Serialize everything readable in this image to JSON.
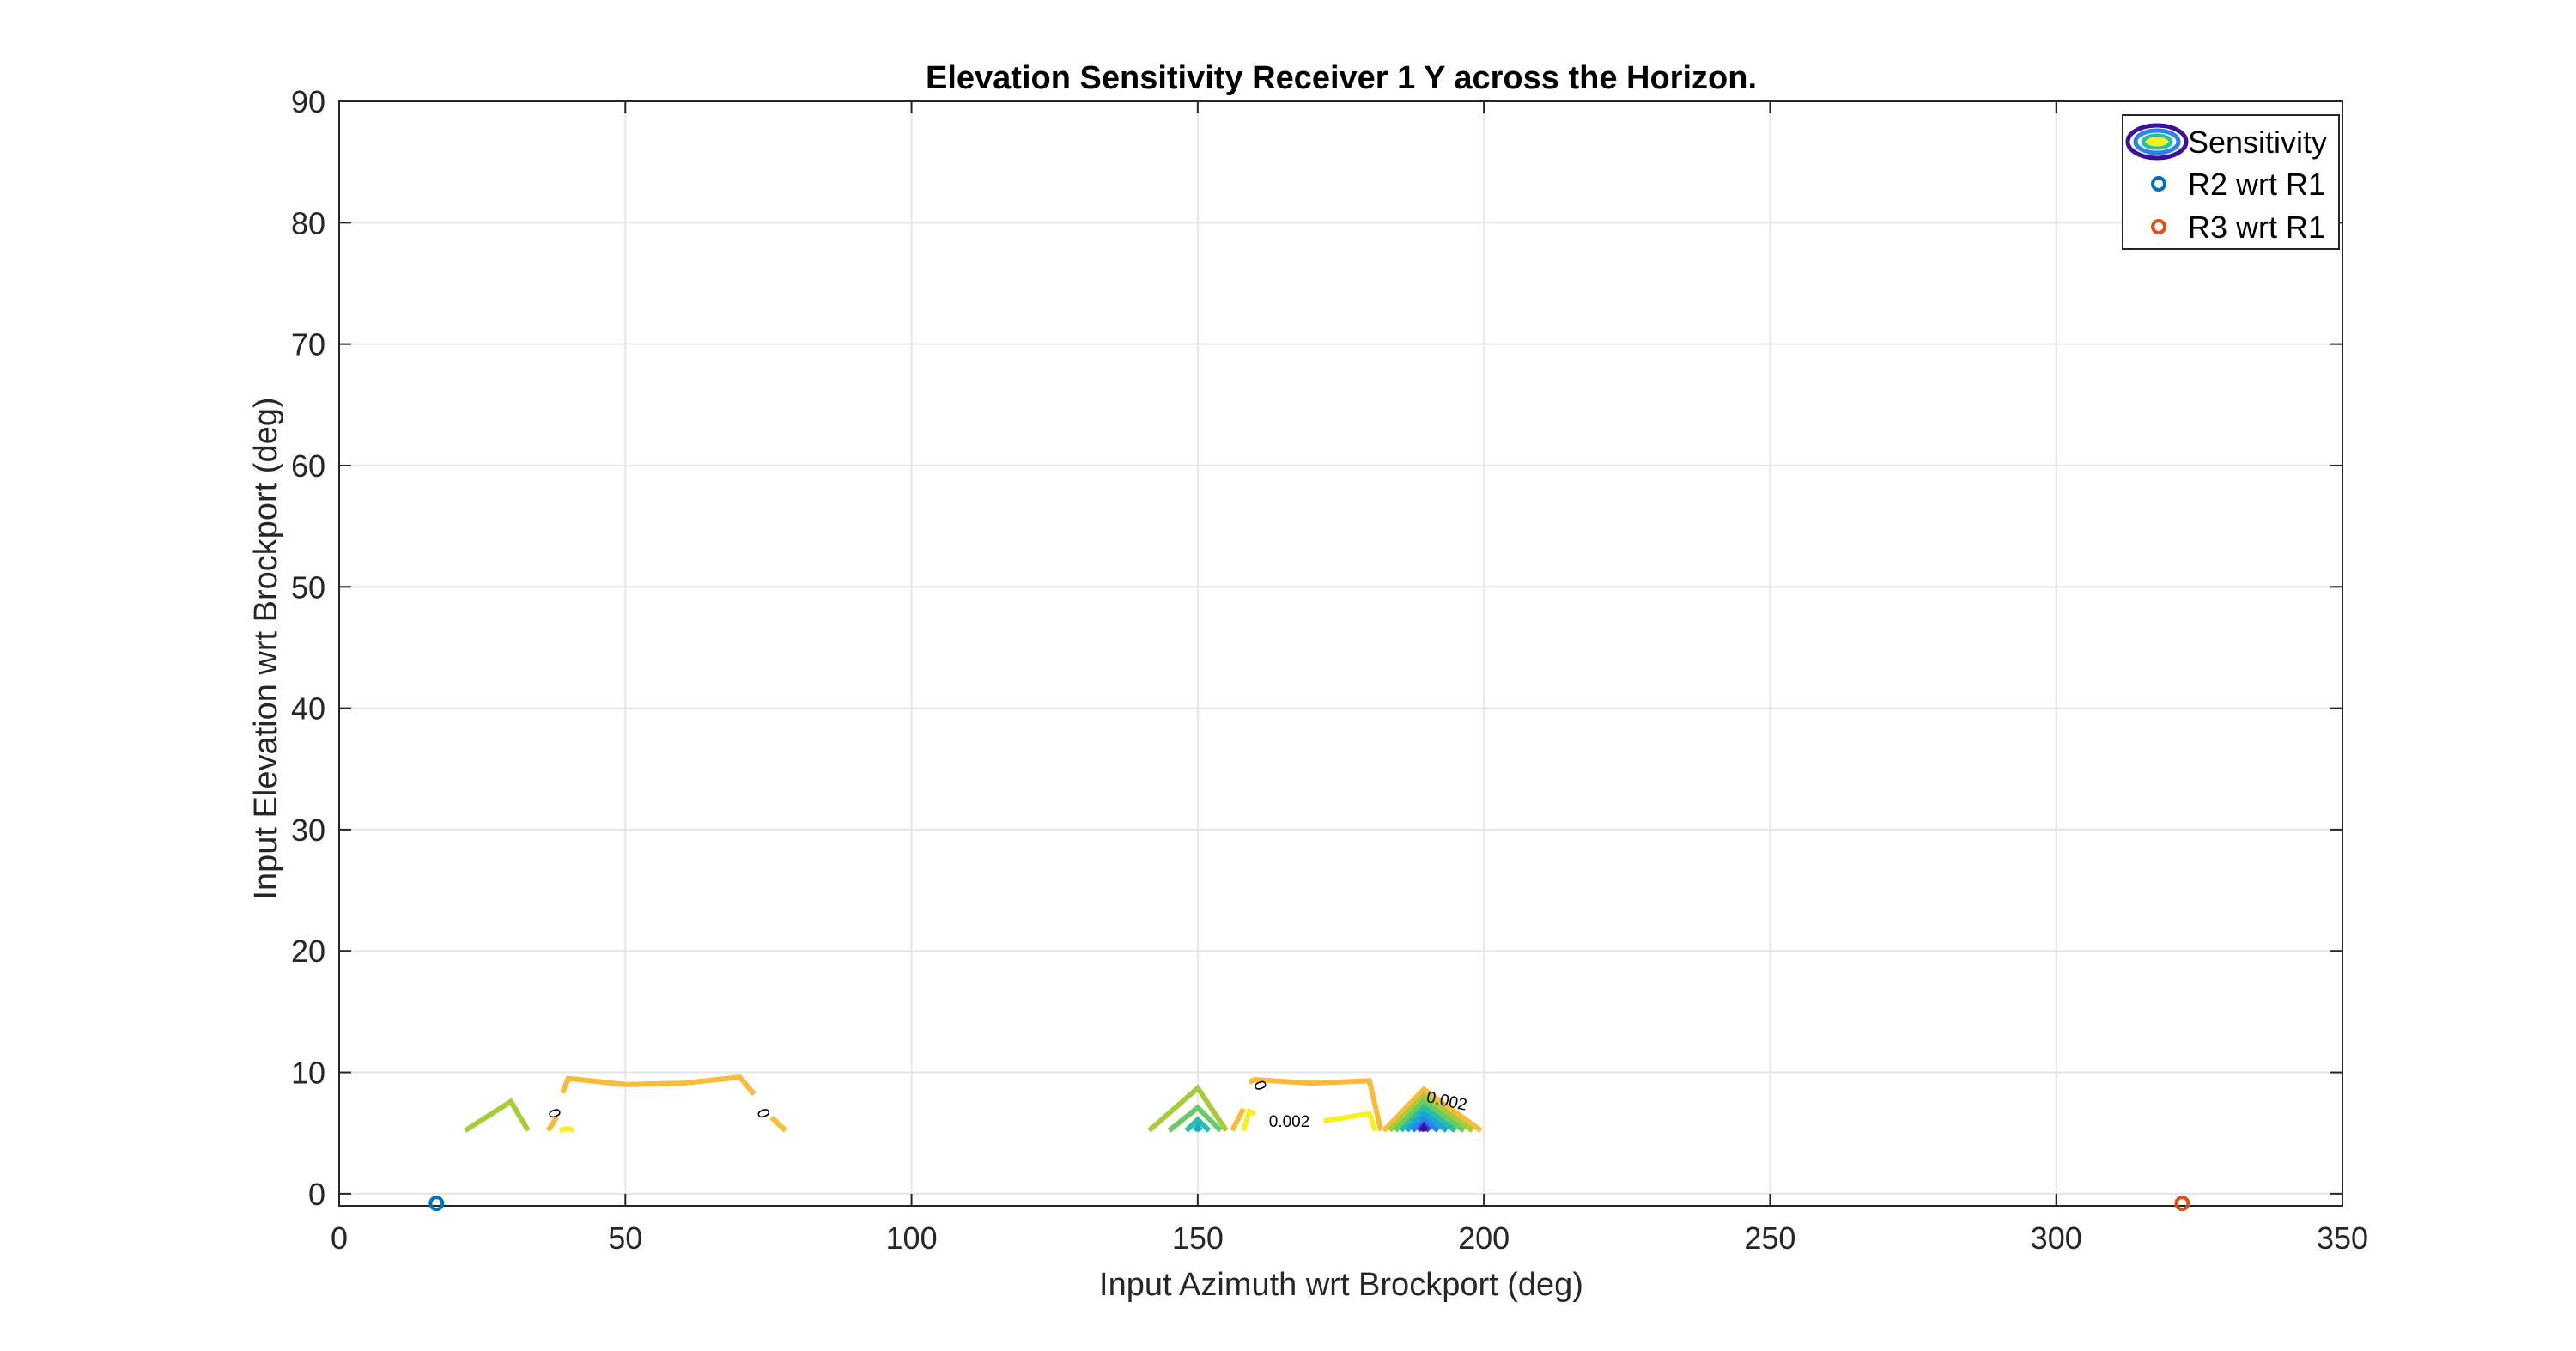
{
  "chart_data": {
    "type": "contour",
    "title": "Elevation Sensitivity Receiver 1 Y across the Horizon.",
    "xlabel": "Input Azimuth wrt Brockport (deg)",
    "ylabel": "Input Elevation wrt Brockport (deg)",
    "xlim": [
      0,
      350
    ],
    "ylim": [
      -1,
      90
    ],
    "xticks": [
      0,
      50,
      100,
      150,
      200,
      250,
      300,
      350
    ],
    "yticks": [
      0,
      10,
      20,
      30,
      40,
      50,
      60,
      70,
      80,
      90
    ],
    "grid": true,
    "legend": {
      "placement": "top-right",
      "entries": [
        "Sensitivity",
        "R2 wrt R1",
        "R3 wrt R1"
      ]
    },
    "colors": {
      "contour_levels": [
        "#3d0fa0",
        "#3b4bd8",
        "#2e7ff0",
        "#1aa5d6",
        "#27bfa6",
        "#66cc63",
        "#a6cc3a",
        "#f8bc38",
        "#f7f124"
      ],
      "R2": "#0072bd",
      "R3": "#d95319"
    },
    "contours": [
      {
        "level_index": 6,
        "points": [
          [
            22,
            5.2
          ],
          [
            30,
            7.6
          ],
          [
            33,
            5.2
          ]
        ]
      },
      {
        "level_index": 7,
        "points": [
          [
            36.5,
            5.2
          ],
          [
            38,
            6.3
          ]
        ]
      },
      {
        "level_index": 7,
        "points": [
          [
            39,
            8.3
          ],
          [
            40,
            9.5
          ],
          [
            50,
            9.0
          ],
          [
            60,
            9.1
          ],
          [
            70,
            9.6
          ],
          [
            72.5,
            8.2
          ]
        ]
      },
      {
        "level_index": 7,
        "points": [
          [
            75.5,
            6.3
          ],
          [
            78,
            5.2
          ]
        ]
      },
      {
        "level_index": 8,
        "points": [
          [
            38.5,
            5.2
          ],
          [
            40,
            5.4
          ],
          [
            41,
            5.2
          ]
        ]
      },
      {
        "level_index": 6,
        "points": [
          [
            141.5,
            5.2
          ],
          [
            150,
            8.7
          ],
          [
            155,
            5.2
          ]
        ]
      },
      {
        "level_index": 5,
        "points": [
          [
            145,
            5.2
          ],
          [
            150,
            7.1
          ],
          [
            154,
            5.2
          ]
        ]
      },
      {
        "level_index": 4,
        "points": [
          [
            148,
            5.2
          ],
          [
            150,
            6.1
          ],
          [
            152,
            5.2
          ]
        ]
      },
      {
        "level_index": 3,
        "points": [
          [
            149.5,
            5.2
          ],
          [
            150,
            5.5
          ],
          [
            150.5,
            5.2
          ]
        ]
      },
      {
        "level_index": 7,
        "points": [
          [
            156,
            5.2
          ],
          [
            158,
            7.0
          ]
        ]
      },
      {
        "level_index": 7,
        "points": [
          [
            159,
            9.2
          ],
          [
            160,
            9.4
          ],
          [
            170,
            9.1
          ],
          [
            180,
            9.3
          ],
          [
            182,
            5.2
          ]
        ]
      },
      {
        "level_index": 8,
        "points": [
          [
            158,
            5.2
          ],
          [
            159,
            6.8
          ],
          [
            160,
            6.6
          ]
        ]
      },
      {
        "level_index": 8,
        "points": [
          [
            172,
            6.0
          ],
          [
            180,
            6.6
          ],
          [
            181,
            5.2
          ]
        ]
      },
      {
        "level_index": 7,
        "points": [
          [
            182.5,
            5.2
          ],
          [
            189.5,
            8.6
          ],
          [
            199.5,
            5.2
          ]
        ]
      },
      {
        "level_index": 6,
        "points": [
          [
            183.5,
            5.2
          ],
          [
            189.5,
            8.1
          ],
          [
            198,
            5.2
          ]
        ]
      },
      {
        "level_index": 5,
        "points": [
          [
            184.5,
            5.2
          ],
          [
            189.5,
            7.6
          ],
          [
            196.5,
            5.2
          ]
        ]
      },
      {
        "level_index": 4,
        "points": [
          [
            185.5,
            5.2
          ],
          [
            189.5,
            7.1
          ],
          [
            195,
            5.2
          ]
        ]
      },
      {
        "level_index": 3,
        "points": [
          [
            186.5,
            5.2
          ],
          [
            189.5,
            6.6
          ],
          [
            193.5,
            5.2
          ]
        ]
      },
      {
        "level_index": 2,
        "points": [
          [
            187.5,
            5.2
          ],
          [
            189.5,
            6.1
          ],
          [
            192,
            5.2
          ]
        ]
      },
      {
        "level_index": 1,
        "points": [
          [
            188.5,
            5.2
          ],
          [
            189.5,
            5.7
          ],
          [
            190.5,
            5.2
          ]
        ]
      },
      {
        "level_index": 0,
        "points": [
          [
            189,
            5.2
          ],
          [
            189.5,
            5.5
          ],
          [
            190,
            5.2
          ]
        ]
      }
    ],
    "contour_labels": [
      {
        "text": "0",
        "x": 37.5,
        "y": 6.6,
        "angle": 70
      },
      {
        "text": "0",
        "x": 74.0,
        "y": 6.6,
        "angle": 70
      },
      {
        "text": "0",
        "x": 160.8,
        "y": 8.9,
        "angle": 70
      },
      {
        "text": "0.002",
        "x": 166,
        "y": 5.9,
        "angle": 0
      },
      {
        "text": "0.002",
        "x": 193.5,
        "y": 7.6,
        "angle": 12
      }
    ],
    "series": [
      {
        "name": "R2 wrt R1",
        "x": [
          17
        ],
        "y": [
          -0.8
        ]
      },
      {
        "name": "R3 wrt R1",
        "x": [
          322
        ],
        "y": [
          -0.8
        ]
      }
    ]
  }
}
